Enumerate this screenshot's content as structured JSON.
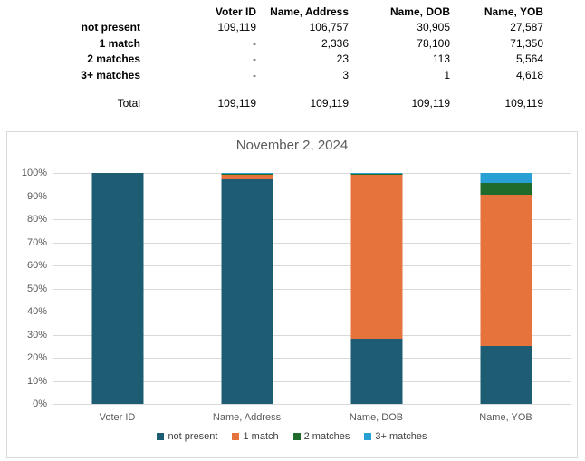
{
  "table": {
    "columns": [
      "",
      "Voter ID",
      "Name, Address",
      "Name, DOB",
      "Name, YOB"
    ],
    "rows": [
      {
        "label": "not present",
        "values": [
          "109,119",
          "106,757",
          "30,905",
          "27,587"
        ]
      },
      {
        "label": "1 match",
        "values": [
          "-",
          "2,336",
          "78,100",
          "71,350"
        ]
      },
      {
        "label": "2 matches",
        "values": [
          "-",
          "23",
          "113",
          "5,564"
        ]
      },
      {
        "label": "3+ matches",
        "values": [
          "-",
          "3",
          "1",
          "4,618"
        ]
      }
    ],
    "total_row": {
      "label": "Total",
      "values": [
        "109,119",
        "109,119",
        "109,119",
        "109,119"
      ]
    }
  },
  "chart_data": {
    "type": "bar",
    "variant": "100%-stacked-column",
    "title": "November 2, 2024",
    "categories": [
      "Voter ID",
      "Name, Address",
      "Name, DOB",
      "Name, YOB"
    ],
    "series": [
      {
        "name": "not present",
        "color": "#1E5C74",
        "values": [
          109119,
          106757,
          30905,
          27587
        ]
      },
      {
        "name": "1 match",
        "color": "#E6733C",
        "values": [
          0,
          2336,
          78100,
          71350
        ]
      },
      {
        "name": "2 matches",
        "color": "#1F6B2B",
        "values": [
          0,
          23,
          113,
          5564
        ]
      },
      {
        "name": "3+ matches",
        "color": "#29A0D4",
        "values": [
          0,
          3,
          1,
          4618
        ]
      }
    ],
    "category_totals": [
      109119,
      109119,
      109119,
      109119
    ],
    "y_ticks": [
      "0%",
      "10%",
      "20%",
      "30%",
      "40%",
      "50%",
      "60%",
      "70%",
      "80%",
      "90%",
      "100%"
    ],
    "ylim": [
      0,
      100
    ],
    "grid": true,
    "legend_position": "bottom",
    "colors": {
      "gridline": "#d9d9d9",
      "border": "#d9d9d9",
      "title_text": "#595959",
      "axis_text": "#595959",
      "legend_text": "#404040"
    }
  }
}
